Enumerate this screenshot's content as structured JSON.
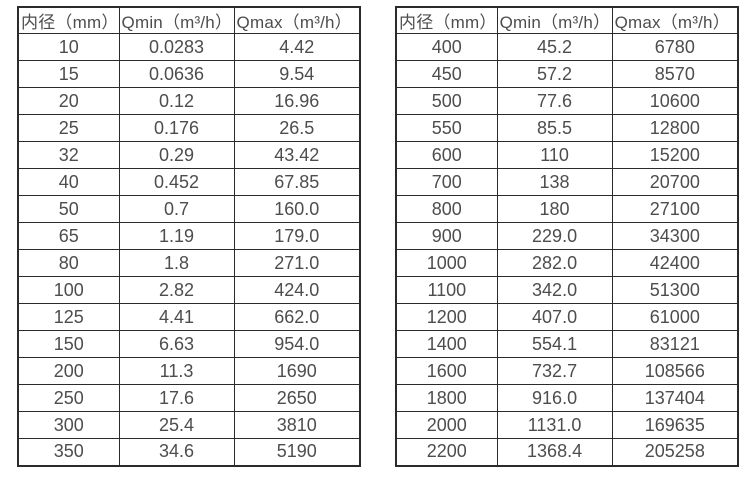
{
  "colors": {
    "background": "#ffffff",
    "text": "#4d4d4d",
    "border": "#2b2b2b"
  },
  "tables": [
    {
      "name": "flow-rate-table-left",
      "headers": [
        "内径（mm）",
        "Qmin（m³/h）",
        "Qmax（m³/h）"
      ],
      "rows": [
        [
          "10",
          "0.0283",
          "4.42"
        ],
        [
          "15",
          "0.0636",
          "9.54"
        ],
        [
          "20",
          "0.12",
          "16.96"
        ],
        [
          "25",
          "0.176",
          "26.5"
        ],
        [
          "32",
          "0.29",
          "43.42"
        ],
        [
          "40",
          "0.452",
          "67.85"
        ],
        [
          "50",
          "0.7",
          "160.0"
        ],
        [
          "65",
          "1.19",
          "179.0"
        ],
        [
          "80",
          "1.8",
          "271.0"
        ],
        [
          "100",
          "2.82",
          "424.0"
        ],
        [
          "125",
          "4.41",
          "662.0"
        ],
        [
          "150",
          "6.63",
          "954.0"
        ],
        [
          "200",
          "11.3",
          "1690"
        ],
        [
          "250",
          "17.6",
          "2650"
        ],
        [
          "300",
          "25.4",
          "3810"
        ],
        [
          "350",
          "34.6",
          "5190"
        ]
      ]
    },
    {
      "name": "flow-rate-table-right",
      "headers": [
        "内径（mm）",
        "Qmin（m³/h）",
        "Qmax（m³/h）"
      ],
      "rows": [
        [
          "400",
          "45.2",
          "6780"
        ],
        [
          "450",
          "57.2",
          "8570"
        ],
        [
          "500",
          "77.6",
          "10600"
        ],
        [
          "550",
          "85.5",
          "12800"
        ],
        [
          "600",
          "110",
          "15200"
        ],
        [
          "700",
          "138",
          "20700"
        ],
        [
          "800",
          "180",
          "27100"
        ],
        [
          "900",
          "229.0",
          "34300"
        ],
        [
          "1000",
          "282.0",
          "42400"
        ],
        [
          "1100",
          "342.0",
          "51300"
        ],
        [
          "1200",
          "407.0",
          "61000"
        ],
        [
          "1400",
          "554.1",
          "83121"
        ],
        [
          "1600",
          "732.7",
          "108566"
        ],
        [
          "1800",
          "916.0",
          "137404"
        ],
        [
          "2000",
          "1131.0",
          "169635"
        ],
        [
          "2200",
          "1368.4",
          "205258"
        ]
      ]
    }
  ]
}
